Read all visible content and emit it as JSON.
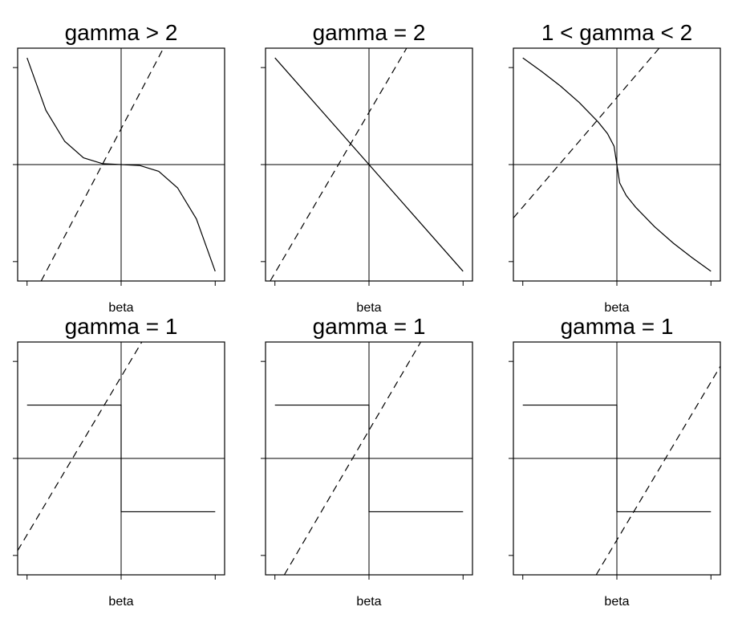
{
  "chart_data": [
    {
      "type": "line",
      "title": "gamma > 2",
      "xlabel": "beta",
      "ylabel": "",
      "xlim": [
        -1.1,
        1.1
      ],
      "ylim": [
        -1.2,
        1.2
      ],
      "series": [
        {
          "style": "solid",
          "x": [
            -1.0,
            -0.8,
            -0.6,
            -0.4,
            -0.2,
            0.0,
            0.2,
            0.4,
            0.6,
            0.8,
            1.0
          ],
          "y": [
            1.1,
            0.56,
            0.24,
            0.07,
            0.01,
            0.0,
            -0.01,
            -0.07,
            -0.24,
            -0.56,
            -1.1
          ]
        },
        {
          "style": "dashed",
          "x": [
            -0.85,
            0.45
          ],
          "y": [
            -1.2,
            1.2
          ]
        }
      ]
    },
    {
      "type": "line",
      "title": "gamma = 2",
      "xlabel": "beta",
      "ylabel": "",
      "xlim": [
        -1.1,
        1.1
      ],
      "ylim": [
        -1.2,
        1.2
      ],
      "series": [
        {
          "style": "solid",
          "x": [
            -1.0,
            1.0
          ],
          "y": [
            1.1,
            -1.1
          ]
        },
        {
          "style": "dashed",
          "x": [
            -1.05,
            0.4
          ],
          "y": [
            -1.2,
            1.2
          ]
        }
      ]
    },
    {
      "type": "line",
      "title": "1 < gamma < 2",
      "xlabel": "beta",
      "ylabel": "",
      "xlim": [
        -1.1,
        1.1
      ],
      "ylim": [
        -1.2,
        1.2
      ],
      "series": [
        {
          "style": "solid",
          "x": [
            -1.0,
            -0.8,
            -0.6,
            -0.4,
            -0.2,
            -0.1,
            -0.03,
            0.0,
            0.03,
            0.1,
            0.2,
            0.4,
            0.6,
            0.8,
            1.0
          ],
          "y": [
            1.1,
            0.96,
            0.81,
            0.64,
            0.44,
            0.32,
            0.19,
            0.0,
            -0.19,
            -0.32,
            -0.44,
            -0.64,
            -0.81,
            -0.96,
            -1.1
          ]
        },
        {
          "style": "dashed",
          "x": [
            -1.1,
            0.45
          ],
          "y": [
            -0.55,
            1.2
          ]
        }
      ]
    },
    {
      "type": "line",
      "title": "gamma = 1",
      "xlabel": "beta",
      "ylabel": "",
      "xlim": [
        -1.1,
        1.1
      ],
      "ylim": [
        -1.2,
        1.2
      ],
      "series": [
        {
          "style": "solid",
          "x": [
            -1.0,
            0.0,
            0.0,
            1.0
          ],
          "y": [
            0.55,
            0.55,
            -0.55,
            -0.55
          ]
        },
        {
          "style": "dashed",
          "x": [
            -1.1,
            0.22
          ],
          "y": [
            -0.95,
            1.2
          ]
        }
      ]
    },
    {
      "type": "line",
      "title": "gamma = 1",
      "xlabel": "beta",
      "ylabel": "",
      "xlim": [
        -1.1,
        1.1
      ],
      "ylim": [
        -1.2,
        1.2
      ],
      "series": [
        {
          "style": "solid",
          "x": [
            -1.0,
            0.0,
            0.0,
            1.0
          ],
          "y": [
            0.55,
            0.55,
            -0.55,
            -0.55
          ]
        },
        {
          "style": "dashed",
          "x": [
            -0.9,
            0.55
          ],
          "y": [
            -1.2,
            1.2
          ]
        }
      ]
    },
    {
      "type": "line",
      "title": "gamma = 1",
      "xlabel": "beta",
      "ylabel": "",
      "xlim": [
        -1.1,
        1.1
      ],
      "ylim": [
        -1.2,
        1.2
      ],
      "series": [
        {
          "style": "solid",
          "x": [
            -1.0,
            0.0,
            0.0,
            1.0
          ],
          "y": [
            0.55,
            0.55,
            -0.55,
            -0.55
          ]
        },
        {
          "style": "dashed",
          "x": [
            -0.22,
            1.1
          ],
          "y": [
            -1.2,
            0.95
          ]
        }
      ]
    }
  ]
}
